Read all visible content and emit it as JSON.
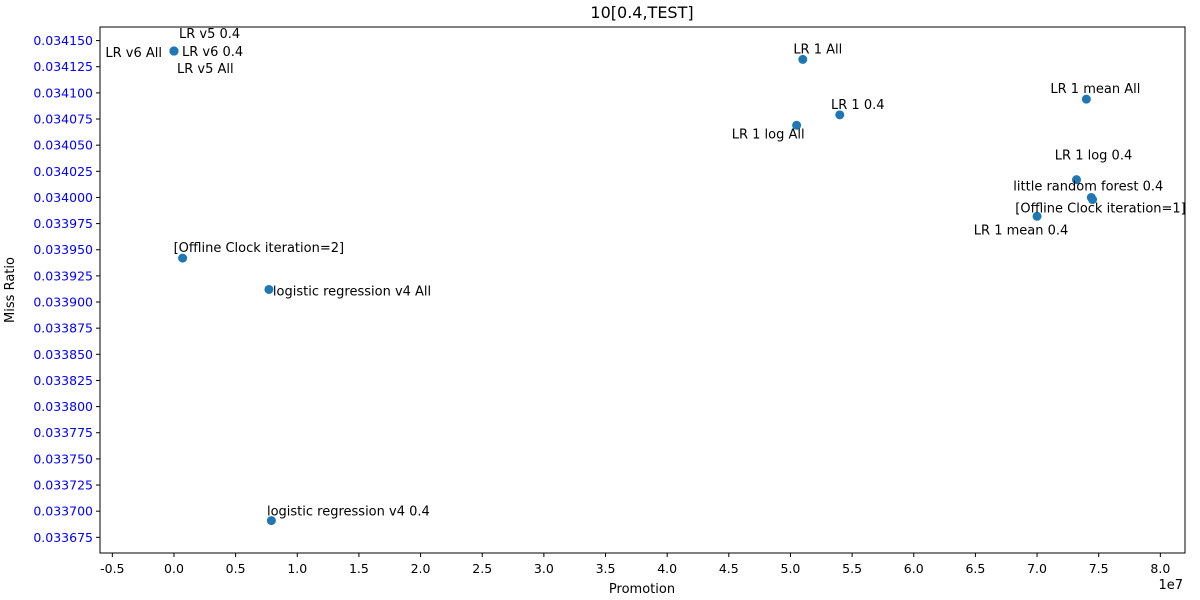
{
  "chart_data": {
    "type": "scatter",
    "title": "10[0.4,TEST]",
    "xlabel": "Promotion",
    "ylabel": "Miss Ratio",
    "x_offset_label": "1e7",
    "xlim": [
      -0.6,
      8.2
    ],
    "ylim": [
      0.03366,
      0.034163
    ],
    "xticks": [
      "-0.5",
      "0.0",
      "0.5",
      "1.0",
      "1.5",
      "2.0",
      "2.5",
      "3.0",
      "3.5",
      "4.0",
      "4.5",
      "5.0",
      "5.5",
      "6.0",
      "6.5",
      "7.0",
      "7.5",
      "8.0"
    ],
    "yticks": [
      "0.033675",
      "0.033700",
      "0.033725",
      "0.033750",
      "0.033775",
      "0.033800",
      "0.033825",
      "0.033850",
      "0.033875",
      "0.033900",
      "0.033925",
      "0.033950",
      "0.033975",
      "0.034000",
      "0.034025",
      "0.034050",
      "0.034075",
      "0.034100",
      "0.034125",
      "0.034150"
    ],
    "grid": false,
    "colors": {
      "marker": "#1f77b4",
      "ytick": "#0000ff",
      "text": "#000000"
    },
    "points": [
      {
        "label": "LR v5 0.4",
        "x": 0.0,
        "y": 0.03414,
        "anchor": "start",
        "dx": 5,
        "dy": -13
      },
      {
        "label": "LR v6 0.4",
        "x": 0.0,
        "y": 0.03414,
        "anchor": "start",
        "dx": 8,
        "dy": 5
      },
      {
        "label": "LR v6 All",
        "x": 0.0,
        "y": 0.03414,
        "anchor": "end",
        "dx": -12,
        "dy": 6
      },
      {
        "label": "LR v5 All",
        "x": 0.0,
        "y": 0.03414,
        "anchor": "start",
        "dx": 3,
        "dy": 22
      },
      {
        "label": "LR 1 All",
        "x": 5.1,
        "y": 0.034132,
        "anchor": "middle",
        "dx": 15,
        "dy": -6
      },
      {
        "label": "LR 1 0.4",
        "x": 5.4,
        "y": 0.034079,
        "anchor": "middle",
        "dx": 18,
        "dy": -6
      },
      {
        "label": "LR 1 log All",
        "x": 5.05,
        "y": 0.034069,
        "anchor": "end",
        "dx": 8,
        "dy": 13
      },
      {
        "label": "LR 1 mean All",
        "x": 7.4,
        "y": 0.034094,
        "anchor": "middle",
        "dx": 9,
        "dy": -6
      },
      {
        "label": "LR 1 log 0.4",
        "x": 7.32,
        "y": 0.034017,
        "anchor": "middle",
        "dx": 17,
        "dy": -20
      },
      {
        "label": "little random forest 0.4",
        "x": 7.44,
        "y": 0.034,
        "anchor": "middle",
        "dx": -3,
        "dy": -7
      },
      {
        "label": "[Offline Clock iteration=1]",
        "x": 7.45,
        "y": 0.033998,
        "anchor": "middle",
        "dx": 8,
        "dy": 13
      },
      {
        "label": "LR 1 mean 0.4",
        "x": 7.0,
        "y": 0.033982,
        "anchor": "middle",
        "dx": -16,
        "dy": 18
      },
      {
        "label": "[Offline Clock iteration=2]",
        "x": 0.07,
        "y": 0.033942,
        "anchor": "start",
        "dx": -9,
        "dy": -6
      },
      {
        "label": "logistic regression v4 All",
        "x": 0.77,
        "y": 0.033912,
        "anchor": "start",
        "dx": 4,
        "dy": 6
      },
      {
        "label": "logistic regression v4 0.4",
        "x": 0.79,
        "y": 0.033691,
        "anchor": "middle",
        "dx": 77,
        "dy": -5
      }
    ]
  }
}
